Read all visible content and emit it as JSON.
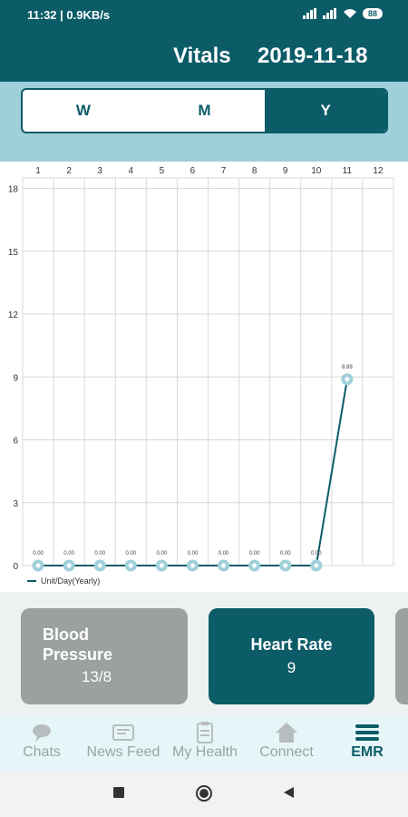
{
  "status_bar": {
    "time_speed": "11:32 | 0.9KB/s",
    "battery": "88"
  },
  "header": {
    "title": "Vitals",
    "date": "2019-11-18"
  },
  "period_tabs": [
    {
      "label": "W",
      "active": false
    },
    {
      "label": "M",
      "active": false
    },
    {
      "label": "Y",
      "active": true
    }
  ],
  "chart_data": {
    "type": "line",
    "x": [
      1,
      2,
      3,
      4,
      5,
      6,
      7,
      8,
      9,
      10,
      11
    ],
    "x_ticks": [
      "1",
      "2",
      "3",
      "4",
      "5",
      "6",
      "7",
      "8",
      "9",
      "10",
      "11",
      "12"
    ],
    "y_ticks": [
      "0",
      "3",
      "6",
      "9",
      "12",
      "15",
      "18"
    ],
    "ylim": [
      0,
      18.5
    ],
    "series": [
      {
        "name": "Unit/Day(Yearly)",
        "values": [
          0,
          0,
          0,
          0,
          0,
          0,
          0,
          0,
          0,
          0,
          8.89
        ],
        "labels": [
          "0.00",
          "0.00",
          "0.00",
          "0.00",
          "0.00",
          "0.00",
          "0.00",
          "0.00",
          "0.00",
          "0.00",
          "8.89"
        ]
      }
    ],
    "grid": true,
    "legend_position": "bottom-left",
    "colors": {
      "line": "#0c5c68",
      "point": "#9fd0da",
      "grid": "#d9d9d9"
    }
  },
  "cards": {
    "blood_pressure": {
      "title": "Blood Pressure",
      "value": "13/8"
    },
    "heart_rate": {
      "title": "Heart Rate",
      "value": "9"
    }
  },
  "nav": {
    "chats": "Chats",
    "news_feed": "News Feed",
    "my_health": "My Health",
    "connect": "Connect",
    "emr": "EMR"
  },
  "colors": {
    "primary": "#0c5c68",
    "accent": "#9fd0da",
    "inactive": "#9ba0a1"
  }
}
